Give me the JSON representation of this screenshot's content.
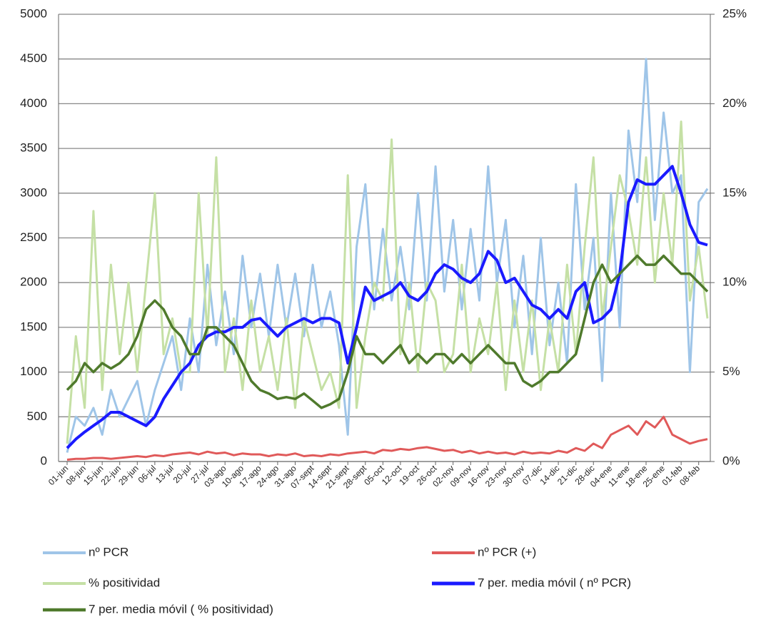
{
  "chart_data": {
    "type": "line",
    "categories": [
      "01-jun",
      null,
      "08-jun",
      null,
      "15-jun",
      null,
      "22-jun",
      null,
      "29-jun",
      null,
      "06-jul",
      null,
      "13-jul",
      null,
      "20-jul",
      null,
      "27-jul",
      null,
      "03-ago",
      null,
      "10-ago",
      null,
      "17-ago",
      null,
      "24-ago",
      null,
      "31-ago",
      null,
      "07-sept",
      null,
      "14-sept",
      null,
      "21-sept",
      null,
      "28-sept",
      null,
      "05-oct",
      null,
      "12-oct",
      null,
      "19-oct",
      null,
      "26-oct",
      null,
      "02-nov",
      null,
      "09-nov",
      null,
      "16-nov",
      null,
      "23-nov",
      null,
      "30-nov",
      null,
      "07-dic",
      null,
      "14-dic",
      null,
      "21-dic",
      null,
      "28-dic",
      null,
      "04-ene",
      null,
      "11-ene",
      null,
      "18-ene",
      null,
      "25-ene",
      null,
      "01-feb",
      null,
      "08-feb",
      null
    ],
    "series": [
      {
        "name": "nº PCR",
        "color": "#9fc5e8",
        "width": 3,
        "values": [
          100,
          500,
          400,
          600,
          300,
          800,
          500,
          700,
          900,
          400,
          800,
          1100,
          1400,
          800,
          1600,
          1000,
          2200,
          1300,
          1900,
          1200,
          2300,
          1500,
          2100,
          1400,
          2200,
          1500,
          2100,
          1400,
          2200,
          1500,
          1900,
          1300,
          300,
          2400,
          3100,
          1700,
          2600,
          1800,
          2400,
          1700,
          3000,
          1800,
          3300,
          1900,
          2700,
          1700,
          2600,
          1800,
          3300,
          2000,
          2700,
          1500,
          2300,
          1200,
          2500,
          1300,
          2000,
          1100,
          3100,
          1700,
          2500,
          900,
          3000,
          1500,
          3700,
          2900,
          4500,
          2700,
          3900,
          3000,
          3200,
          1000,
          2900,
          3050
        ]
      },
      {
        "name": "nº PCR (+)",
        "color": "#e05a5a",
        "width": 3,
        "values": [
          20,
          30,
          30,
          40,
          40,
          30,
          40,
          50,
          60,
          50,
          70,
          60,
          80,
          90,
          100,
          80,
          110,
          90,
          100,
          70,
          90,
          80,
          80,
          60,
          80,
          70,
          90,
          60,
          70,
          60,
          80,
          70,
          90,
          100,
          110,
          90,
          130,
          120,
          140,
          130,
          150,
          160,
          140,
          120,
          130,
          100,
          120,
          90,
          110,
          90,
          100,
          80,
          110,
          90,
          100,
          90,
          120,
          100,
          150,
          120,
          200,
          150,
          300,
          350,
          400,
          300,
          450,
          380,
          500,
          300,
          250,
          200,
          230,
          250
        ]
      },
      {
        "name": "% positividad",
        "color": "#c5e0a5",
        "width": 3,
        "axis": "y2",
        "values": [
          1,
          7,
          3,
          14,
          4,
          11,
          6,
          10,
          5,
          10,
          15,
          6,
          8,
          5,
          5,
          15,
          7,
          17,
          5,
          8,
          4,
          9,
          5,
          7,
          4,
          8,
          3,
          8,
          6,
          4,
          5,
          3,
          16,
          3,
          7,
          10,
          9,
          18,
          6,
          10,
          5,
          10,
          9,
          5,
          6,
          11,
          5,
          8,
          6,
          10,
          4,
          9,
          5,
          9,
          4,
          8,
          5,
          11,
          6,
          12,
          17,
          8,
          12,
          16,
          14,
          11,
          17,
          10,
          15,
          11,
          19,
          9,
          12,
          8
        ]
      },
      {
        "name": "7 per. media móvil ( nº PCR)",
        "color": "#1a1aff",
        "width": 4,
        "values": [
          150,
          250,
          330,
          400,
          470,
          550,
          550,
          500,
          450,
          400,
          500,
          700,
          850,
          1000,
          1100,
          1300,
          1400,
          1450,
          1450,
          1500,
          1500,
          1580,
          1600,
          1500,
          1400,
          1500,
          1550,
          1600,
          1550,
          1600,
          1600,
          1550,
          1100,
          1500,
          1950,
          1800,
          1850,
          1900,
          2000,
          1850,
          1800,
          1900,
          2100,
          2200,
          2150,
          2050,
          2000,
          2100,
          2350,
          2250,
          2000,
          2050,
          1900,
          1750,
          1700,
          1600,
          1700,
          1600,
          1900,
          2000,
          1550,
          1600,
          1700,
          2100,
          2900,
          3150,
          3100,
          3100,
          3200,
          3300,
          3000,
          2650,
          2450,
          2420
        ]
      },
      {
        "name": "7 per. media móvil ( % positividad)",
        "color": "#4f7a2c",
        "width": 3.5,
        "axis": "y2",
        "values": [
          4,
          4.5,
          5.5,
          5,
          5.5,
          5.2,
          5.5,
          6,
          7,
          8.5,
          9,
          8.5,
          7.5,
          7,
          6,
          6,
          7.5,
          7.5,
          7,
          6.5,
          5.5,
          4.5,
          4,
          3.8,
          3.5,
          3.6,
          3.5,
          3.8,
          3.4,
          3,
          3.2,
          3.5,
          5,
          7,
          6,
          6,
          5.5,
          6,
          6.5,
          5.5,
          6,
          5.5,
          6,
          6,
          5.5,
          6,
          5.5,
          6,
          6.5,
          6,
          5.5,
          5.5,
          4.5,
          4.2,
          4.5,
          5,
          5,
          5.5,
          6,
          8,
          10,
          11,
          10,
          10.5,
          11,
          11.5,
          11,
          11,
          11.5,
          11,
          10.5,
          10.5,
          10,
          9.5
        ]
      }
    ],
    "ylim": [
      0,
      5000
    ],
    "yticks": [
      0,
      500,
      1000,
      1500,
      2000,
      2500,
      3000,
      3500,
      4000,
      4500,
      5000
    ],
    "y2lim": [
      0,
      25
    ],
    "y2ticks": [
      {
        "value": 0,
        "label": "0%"
      },
      {
        "value": 5,
        "label": "5%"
      },
      {
        "value": 10,
        "label": "10%"
      },
      {
        "value": 15,
        "label": "15%"
      },
      {
        "value": 20,
        "label": "20%"
      },
      {
        "value": 25,
        "label": "25%"
      }
    ],
    "grid": true
  }
}
